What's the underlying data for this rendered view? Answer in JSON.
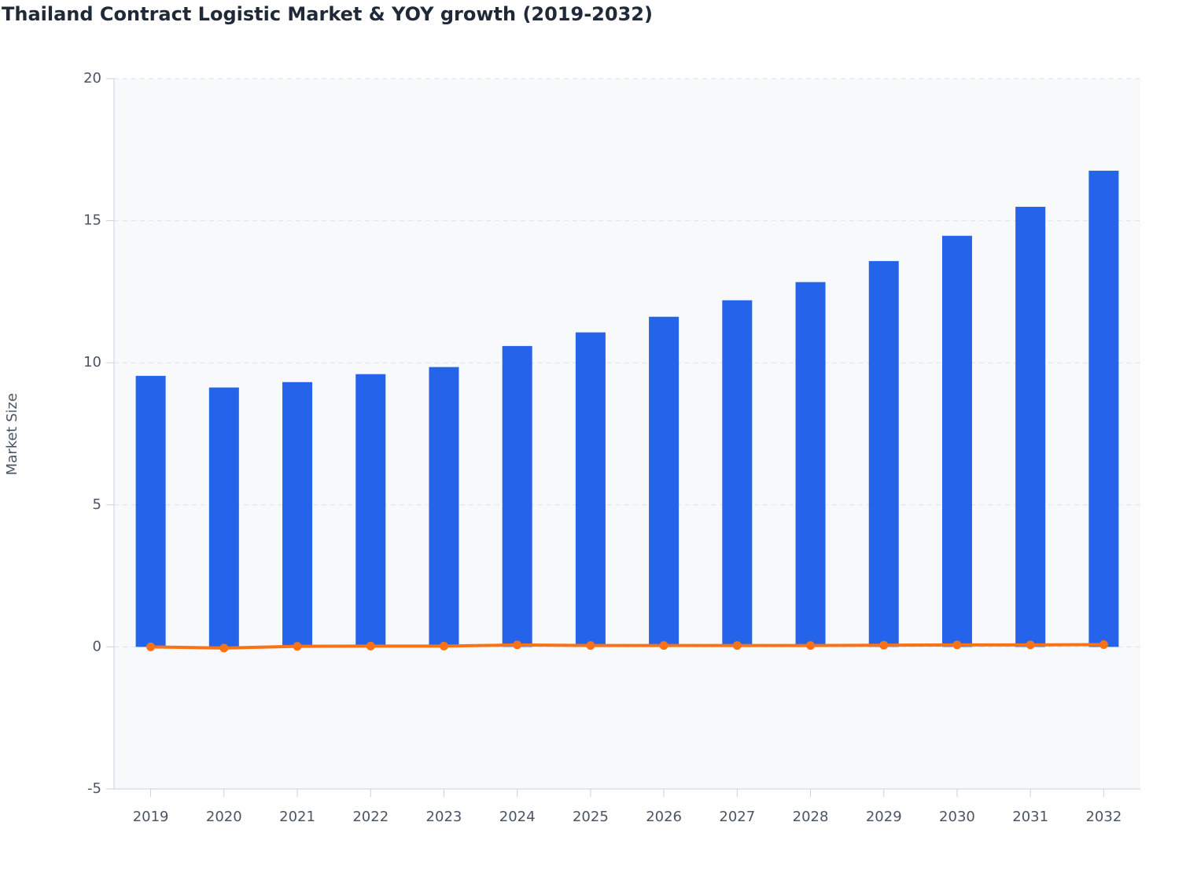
{
  "chart_data": {
    "type": "bar",
    "title": "Thailand Contract Logistic Market & YOY growth (2019-2032)",
    "y_label": "Market Size",
    "categories": [
      "2019",
      "2020",
      "2021",
      "2022",
      "2023",
      "2024",
      "2025",
      "2026",
      "2027",
      "2028",
      "2029",
      "2030",
      "2031",
      "2032"
    ],
    "series": [
      {
        "type": "bar",
        "color": "#2563eb",
        "values": [
          9.54,
          9.13,
          9.32,
          9.6,
          9.85,
          10.59,
          11.07,
          11.62,
          12.2,
          12.84,
          13.58,
          14.47,
          15.49,
          16.76
        ]
      },
      {
        "type": "line",
        "color": "#f97316",
        "values": [
          0,
          -0.04,
          0.02,
          0.03,
          0.03,
          0.07,
          0.05,
          0.05,
          0.05,
          0.05,
          0.06,
          0.07,
          0.07,
          0.08
        ]
      }
    ],
    "ylim": [
      -5,
      20
    ],
    "yticks": [
      -5,
      0,
      5,
      10,
      15,
      20
    ],
    "grid": true
  }
}
